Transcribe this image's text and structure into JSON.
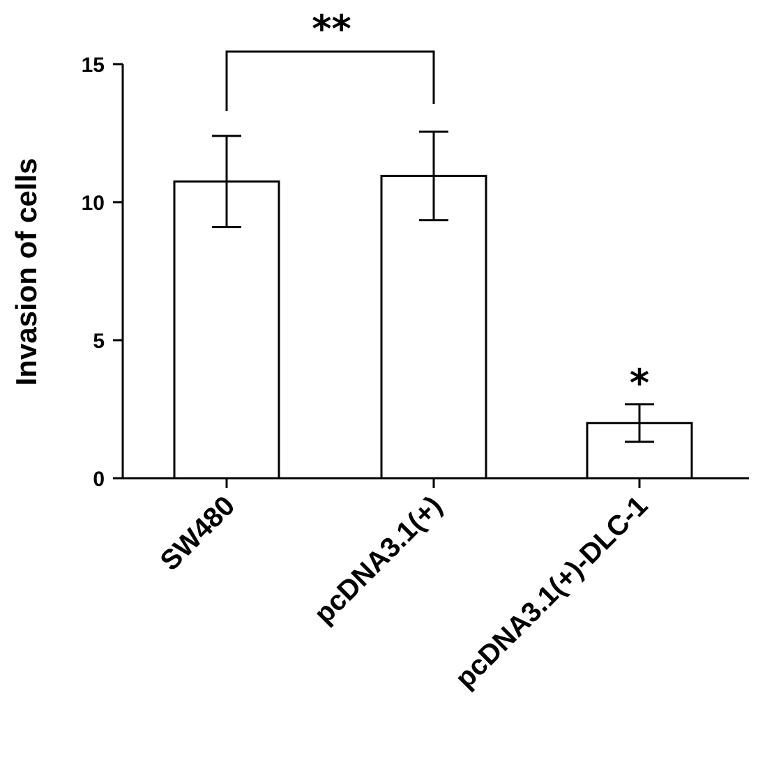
{
  "chart_data": {
    "type": "bar",
    "categories": [
      "SW480",
      "pcDNA3.1(+)",
      "pcDNA3.1(+)-DLC-1"
    ],
    "values": [
      10.75,
      10.95,
      2.0
    ],
    "errors": [
      1.65,
      1.6,
      0.68
    ],
    "ylabel": "Invasion of cells",
    "xlabel": "",
    "ylim": [
      0,
      15
    ],
    "yticks": [
      0,
      5,
      10,
      15
    ],
    "grid": false,
    "annotations": [
      {
        "text": "**",
        "type": "bracket",
        "from": 0,
        "to": 1
      },
      {
        "text": "*",
        "type": "bar",
        "index": 2
      }
    ]
  }
}
